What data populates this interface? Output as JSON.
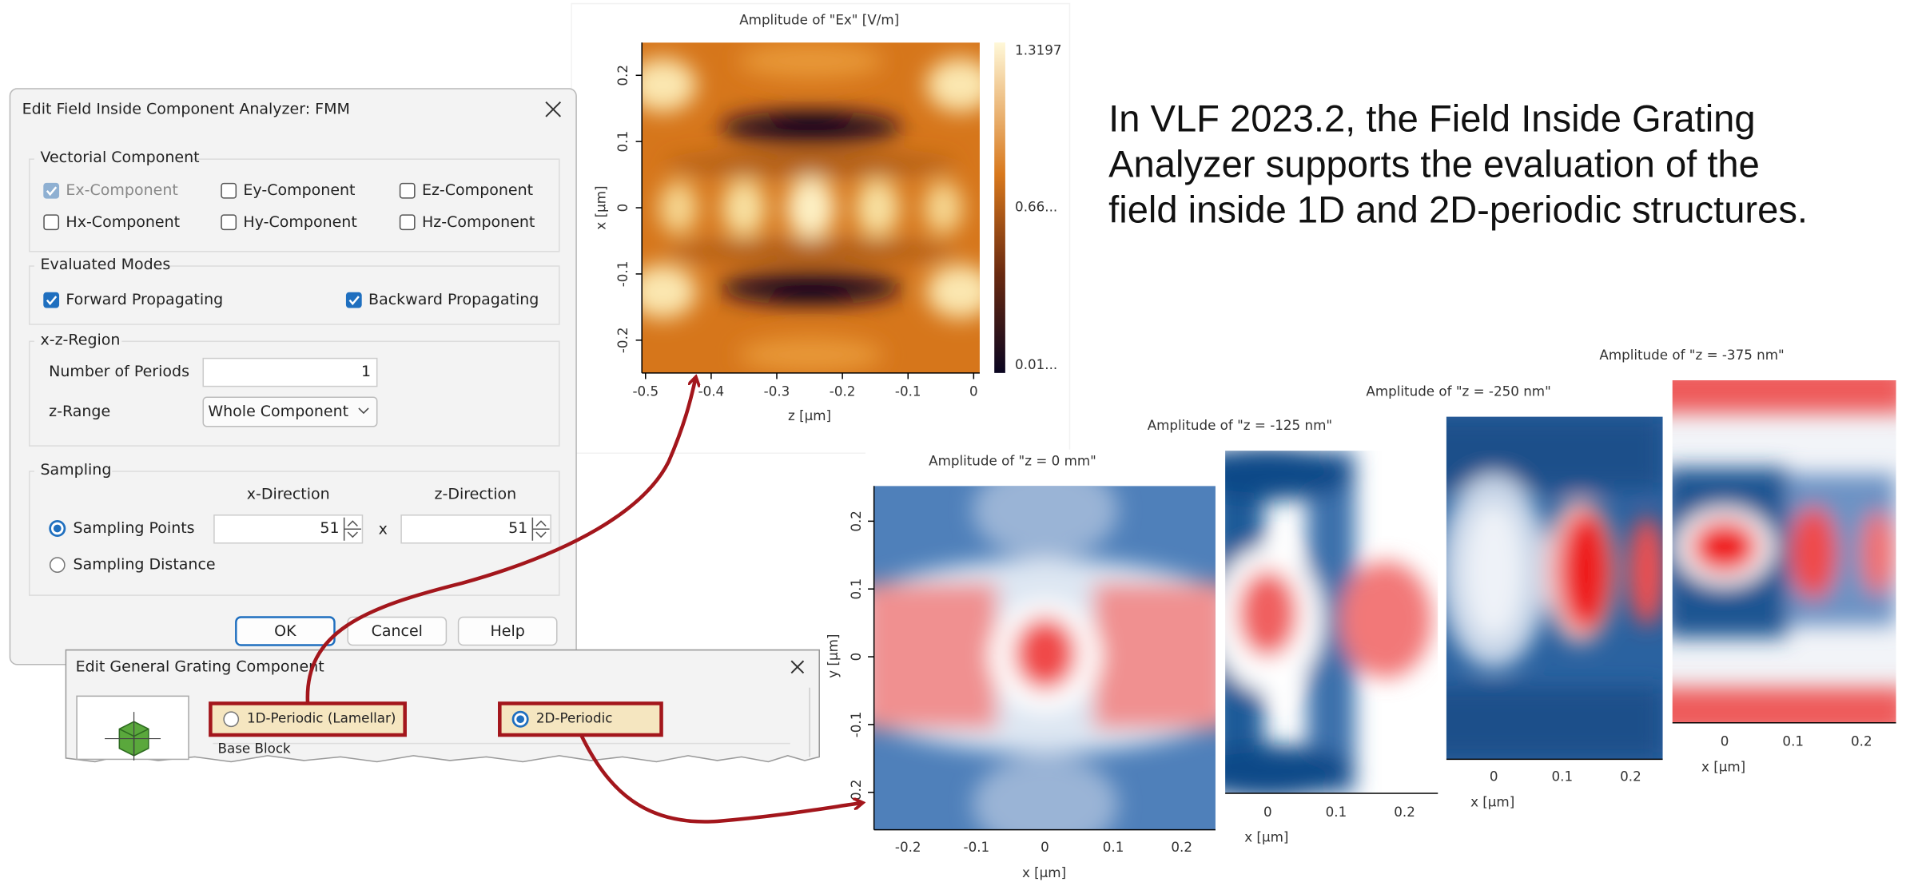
{
  "analyzer_dialog": {
    "title": "Edit Field Inside Component Analyzer: FMM",
    "vectorial_component": {
      "label": "Vectorial Component",
      "options": [
        {
          "label": "Ex-Component",
          "checked": true,
          "enabled": false
        },
        {
          "label": "Ey-Component",
          "checked": false,
          "enabled": true
        },
        {
          "label": "Ez-Component",
          "checked": false,
          "enabled": true
        },
        {
          "label": "Hx-Component",
          "checked": false,
          "enabled": true
        },
        {
          "label": "Hy-Component",
          "checked": false,
          "enabled": true
        },
        {
          "label": "Hz-Component",
          "checked": false,
          "enabled": true
        }
      ]
    },
    "evaluated_modes": {
      "label": "Evaluated Modes",
      "options": [
        {
          "label": "Forward Propagating",
          "checked": true,
          "enabled": true
        },
        {
          "label": "Backward Propagating",
          "checked": true,
          "enabled": true
        }
      ]
    },
    "region": {
      "label": "x-z-Region",
      "number_of_periods_label": "Number of Periods",
      "number_of_periods": "1",
      "z_range_label": "z-Range",
      "z_range": "Whole Component"
    },
    "sampling": {
      "label": "Sampling",
      "x_direction_label": "x-Direction",
      "z_direction_label": "z-Direction",
      "times": "x",
      "options": [
        {
          "label": "Sampling Points",
          "selected": true
        },
        {
          "label": "Sampling Distance",
          "selected": false
        }
      ],
      "x_points": "51",
      "z_points": "51"
    },
    "buttons": [
      "OK",
      "Cancel",
      "Help"
    ]
  },
  "grating_dialog": {
    "title": "Edit General Grating Component",
    "options": [
      {
        "label": "1D-Periodic (Lamellar)",
        "selected": false
      },
      {
        "label": "2D-Periodic",
        "selected": true
      }
    ],
    "section": "Base Block"
  },
  "description": [
    "In VLF 2023.2, the Field Inside Grating",
    "Analyzer supports the evaluation of the",
    "field inside 1D and 2D-periodic structures."
  ],
  "ex_plot": {
    "title": "Amplitude of \"Ex\"  [V/m]",
    "x_label": "z [µm]",
    "y_label": "x [µm]",
    "xticks": [
      "-0.5",
      "-0.4",
      "-0.3",
      "-0.2",
      "-0.1",
      "0"
    ],
    "yticks": [
      "0.2",
      "0.1",
      "0",
      "-0.1",
      "-0.2"
    ],
    "colorbar_labels": [
      "1.3197",
      "0.66...",
      "0.01..."
    ]
  },
  "slice_plots": [
    {
      "title": "Amplitude of \"z = 0 mm\"",
      "x_label": "x [µm]",
      "y_label": "y [µm]",
      "xticks": [
        "-0.2",
        "-0.1",
        "0",
        "0.1",
        "0.2"
      ],
      "yticks": [
        "0.2",
        "0.1",
        "0",
        "-0.1",
        "-0.2"
      ]
    },
    {
      "title": "Amplitude of \"z = -125 nm\"",
      "x_label": "x [µm]",
      "xticks": [
        "0",
        "0.1",
        "0.2"
      ]
    },
    {
      "title": "Amplitude of \"z = -250 nm\"",
      "x_label": "x [µm]",
      "xticks": [
        "0",
        "0.1",
        "0.2"
      ]
    },
    {
      "title": "Amplitude of \"z = -375 nm\"",
      "x_label": "x [µm]",
      "xticks": [
        "0",
        "0.1",
        "0.2"
      ]
    }
  ]
}
